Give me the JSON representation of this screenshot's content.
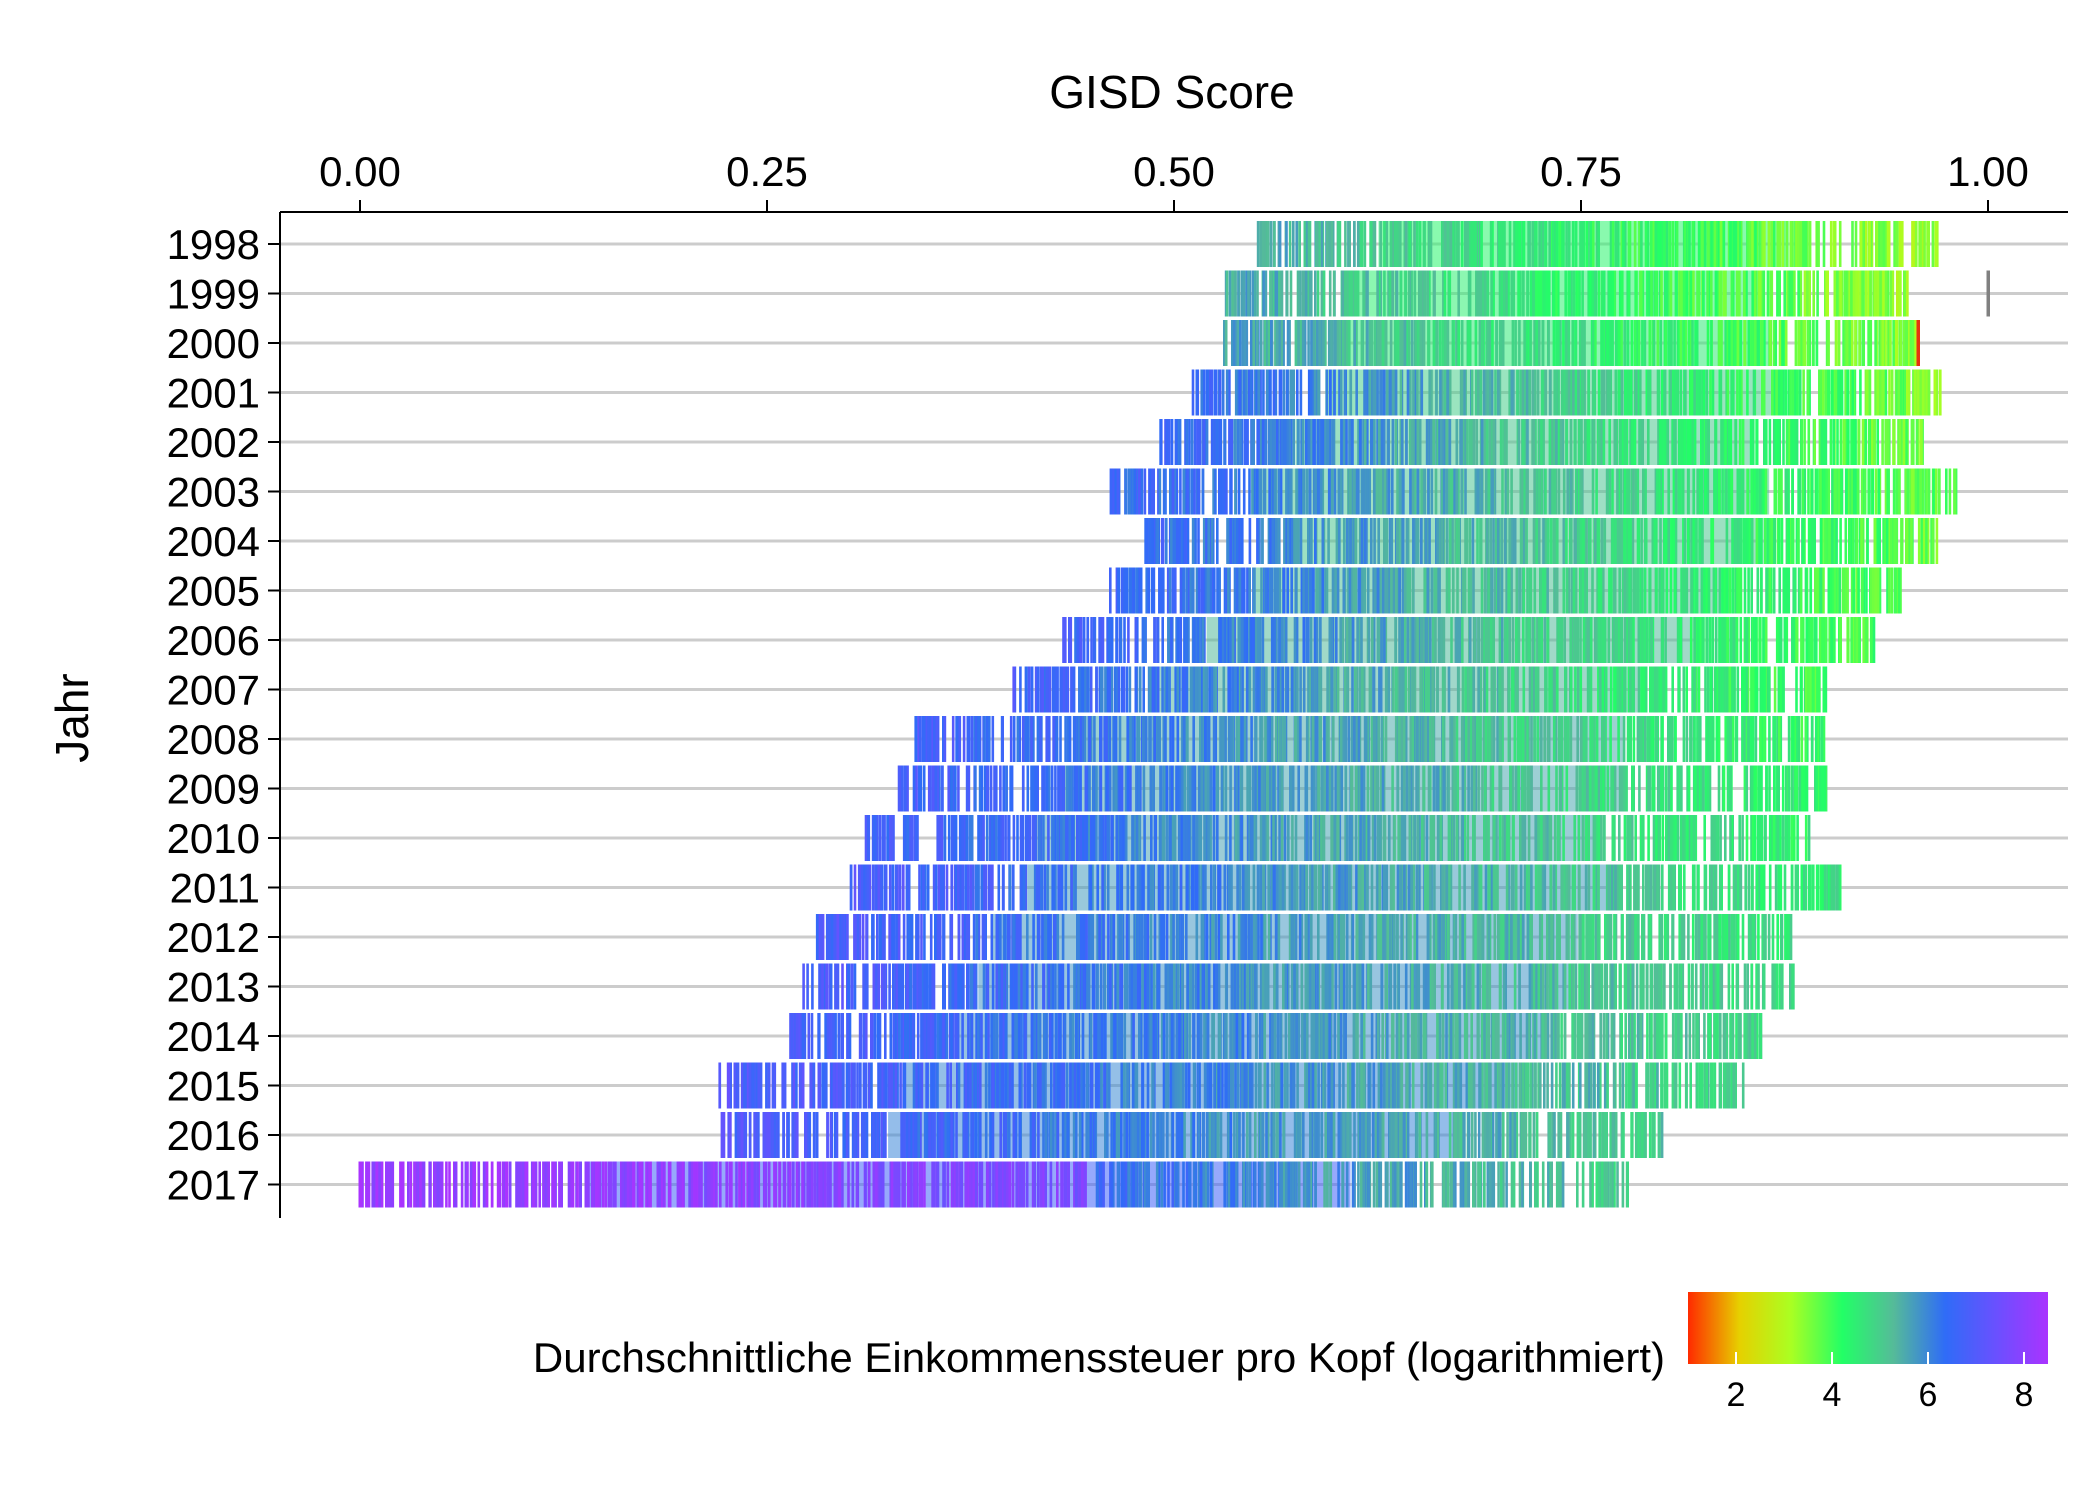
{
  "chart_data": {
    "type": "strip",
    "title": "",
    "xlabel": "GISD Score",
    "ylabel": "Jahr",
    "x_axis_position": "top",
    "xlim": [
      -0.05,
      1.05
    ],
    "xticks": [
      0.0,
      0.25,
      0.5,
      0.75,
      1.0
    ],
    "xtick_labels": [
      "0.00",
      "0.25",
      "0.50",
      "0.75",
      "1.00"
    ],
    "years": [
      "1998",
      "1999",
      "2000",
      "2001",
      "2002",
      "2003",
      "2004",
      "2005",
      "2006",
      "2007",
      "2008",
      "2009",
      "2010",
      "2011",
      "2012",
      "2013",
      "2014",
      "2015",
      "2016",
      "2017"
    ],
    "year_ranges": [
      {
        "year": "1998",
        "min": 0.55,
        "max": 0.97,
        "c_low": 5.5,
        "c_high": 3.2
      },
      {
        "year": "1999",
        "min": 0.53,
        "max": 0.95,
        "c_low": 5.6,
        "c_high": 3.3
      },
      {
        "year": "2000",
        "min": 0.53,
        "max": 0.96,
        "c_low": 5.7,
        "c_high": 3.4
      },
      {
        "year": "2001",
        "min": 0.51,
        "max": 0.97,
        "c_low": 6.5,
        "c_high": 3.5
      },
      {
        "year": "2002",
        "min": 0.49,
        "max": 0.96,
        "c_low": 6.6,
        "c_high": 3.6
      },
      {
        "year": "2003",
        "min": 0.46,
        "max": 0.98,
        "c_low": 6.6,
        "c_high": 3.7
      },
      {
        "year": "2004",
        "min": 0.48,
        "max": 0.97,
        "c_low": 6.5,
        "c_high": 3.7
      },
      {
        "year": "2005",
        "min": 0.46,
        "max": 0.95,
        "c_low": 6.6,
        "c_high": 3.8
      },
      {
        "year": "2006",
        "min": 0.43,
        "max": 0.93,
        "c_low": 6.7,
        "c_high": 3.9
      },
      {
        "year": "2007",
        "min": 0.4,
        "max": 0.9,
        "c_low": 6.7,
        "c_high": 4.0
      },
      {
        "year": "2008",
        "min": 0.34,
        "max": 0.9,
        "c_low": 6.8,
        "c_high": 4.2
      },
      {
        "year": "2009",
        "min": 0.33,
        "max": 0.9,
        "c_low": 6.8,
        "c_high": 4.3
      },
      {
        "year": "2010",
        "min": 0.31,
        "max": 0.89,
        "c_low": 6.8,
        "c_high": 4.4
      },
      {
        "year": "2011",
        "min": 0.3,
        "max": 0.91,
        "c_low": 6.9,
        "c_high": 4.5
      },
      {
        "year": "2012",
        "min": 0.28,
        "max": 0.88,
        "c_low": 6.9,
        "c_high": 4.6
      },
      {
        "year": "2013",
        "min": 0.27,
        "max": 0.88,
        "c_low": 6.9,
        "c_high": 4.7
      },
      {
        "year": "2014",
        "min": 0.26,
        "max": 0.86,
        "c_low": 6.9,
        "c_high": 4.8
      },
      {
        "year": "2015",
        "min": 0.22,
        "max": 0.85,
        "c_low": 7.0,
        "c_high": 4.9
      },
      {
        "year": "2016",
        "min": 0.22,
        "max": 0.8,
        "c_low": 7.0,
        "c_high": 5.0
      },
      {
        "year": "2017",
        "min": 0.0,
        "max": 0.78,
        "c_low": 8.4,
        "c_high": 5.0
      }
    ],
    "outliers": [
      {
        "year": "1999",
        "x": 1.0,
        "color": "#808080"
      },
      {
        "year": "2000",
        "x": 0.957,
        "color": "#e63010"
      },
      {
        "year": "2011",
        "x": 0.907,
        "c": 5.0
      },
      {
        "year": "2017",
        "x": 0.0,
        "c": 8.5
      },
      {
        "year": "2017",
        "x": 0.09,
        "c": 8.5
      },
      {
        "year": "2017",
        "x": 0.145,
        "c": 8.4
      },
      {
        "year": "2017",
        "x": 0.168,
        "c": 8.4
      },
      {
        "year": "2017",
        "x": 0.172,
        "c": 8.4
      },
      {
        "year": "2017",
        "x": 0.178,
        "c": 8.4
      },
      {
        "year": "2017",
        "x": 0.19,
        "c": 8.3
      }
    ],
    "colorbar": {
      "title": "Durchschnittliche Einkommenssteuer pro Kopf (logarithmiert)",
      "range": [
        1.0,
        8.5
      ],
      "ticks": [
        2,
        4,
        6,
        8
      ],
      "tick_labels": [
        "2",
        "4",
        "6",
        "8"
      ],
      "colors": [
        "#ff2a00",
        "#e6d000",
        "#aaff22",
        "#22ff66",
        "#55bb99",
        "#2f6cf7",
        "#6a50ff",
        "#aa33ff"
      ],
      "position": "bottom-right"
    }
  }
}
